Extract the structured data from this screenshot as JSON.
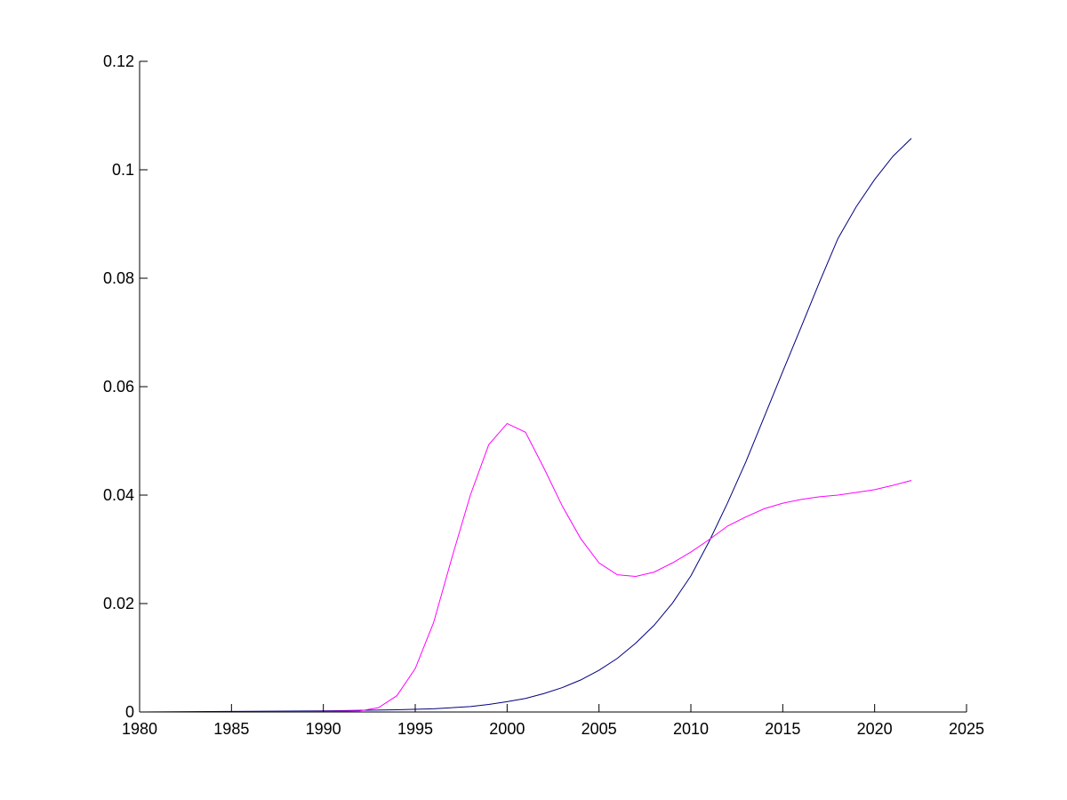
{
  "chart_data": {
    "type": "line",
    "title": "",
    "xlabel": "",
    "ylabel": "",
    "xlim": [
      1980,
      2025
    ],
    "ylim": [
      0,
      0.12
    ],
    "x_ticks": [
      "1980",
      "1985",
      "1990",
      "1995",
      "2000",
      "2005",
      "2010",
      "2015",
      "2020",
      "2025"
    ],
    "y_ticks": [
      "0",
      "0.02",
      "0.04",
      "0.06",
      "0.08",
      "0.1",
      "0.12"
    ],
    "grid": false,
    "legend": "none",
    "series": [
      {
        "color": "#00007f",
        "x": [
          1980,
          1985,
          1990,
          1992,
          1994,
          1996,
          1998,
          1999,
          2000,
          2001,
          2002,
          2003,
          2004,
          2005,
          2006,
          2007,
          2008,
          2009,
          2010,
          2011,
          2012,
          2013,
          2014,
          2015,
          2016,
          2017,
          2018,
          2019,
          2020,
          2021,
          2022
        ],
        "y": [
          0.0,
          0.0001,
          0.0002,
          0.0003,
          0.0004,
          0.0006,
          0.001,
          0.0014,
          0.0019,
          0.0025,
          0.0034,
          0.0045,
          0.0059,
          0.0077,
          0.0099,
          0.0127,
          0.016,
          0.0201,
          0.0251,
          0.0315,
          0.0386,
          0.0462,
          0.0545,
          0.0628,
          0.071,
          0.0793,
          0.0873,
          0.0932,
          0.0982,
          0.1025,
          0.1058
        ]
      },
      {
        "color": "#ff00ff",
        "x": [
          1980,
          1985,
          1990,
          1992,
          1993,
          1994,
          1995,
          1996,
          1997,
          1998,
          1999,
          2000,
          2001,
          2002,
          2003,
          2004,
          2005,
          2006,
          2007,
          2008,
          2009,
          2010,
          2011,
          2012,
          2013,
          2014,
          2015,
          2016,
          2017,
          2018,
          2019,
          2020,
          2021,
          2022
        ],
        "y": [
          0.0,
          0.0,
          0.0001,
          0.0002,
          0.0008,
          0.003,
          0.008,
          0.0165,
          0.0285,
          0.04,
          0.0493,
          0.0532,
          0.0516,
          0.045,
          0.038,
          0.032,
          0.0275,
          0.0253,
          0.025,
          0.0258,
          0.0275,
          0.0295,
          0.0318,
          0.0343,
          0.036,
          0.0375,
          0.0385,
          0.0392,
          0.0397,
          0.04,
          0.0405,
          0.041,
          0.0418,
          0.0427
        ]
      }
    ]
  }
}
